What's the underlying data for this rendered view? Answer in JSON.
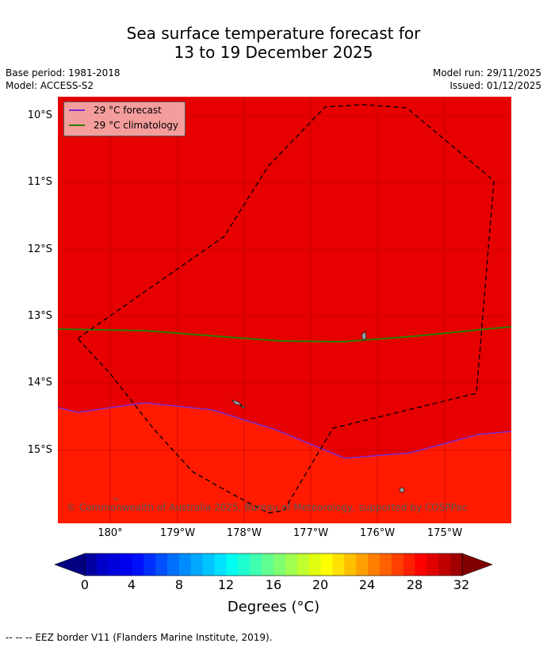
{
  "title": {
    "line1": "Sea surface temperature forecast for",
    "line2": "13 to 19 December 2025"
  },
  "meta": {
    "base_period": "Base period: 1981-2018",
    "model": "Model: ACCESS-S2",
    "model_run": "Model run: 29/11/2025",
    "issued": "Issued: 01/12/2025"
  },
  "map": {
    "lat_labels": [
      "10°S",
      "11°S",
      "12°S",
      "13°S",
      "14°S",
      "15°S"
    ],
    "lon_labels": [
      "180°",
      "179°W",
      "178°W",
      "177°W",
      "176°W",
      "175°W"
    ],
    "legend": [
      {
        "label": "29 °C  forecast",
        "color": "#7b2ccf"
      },
      {
        "label": "29 °C  climatology",
        "color": "#2e7d00"
      }
    ],
    "credit": "© Commonwealth of Australia 2025, Bureau of Meteorology, supported by COSPPac",
    "colors": {
      "warm_region": "#e60000",
      "cool_region": "#ff1a00",
      "grid": "#b40000",
      "eez": "#000000"
    }
  },
  "colorbar": {
    "tick_labels": [
      "0",
      "4",
      "8",
      "12",
      "16",
      "20",
      "24",
      "28",
      "32"
    ],
    "min": 0,
    "max": 32,
    "step": 1,
    "colors": [
      "#0000a0",
      "#0000c8",
      "#0000dc",
      "#0000f0",
      "#0010ff",
      "#0030ff",
      "#0050ff",
      "#0070ff",
      "#008cff",
      "#00a8ff",
      "#00c4ff",
      "#00e0ff",
      "#00fff0",
      "#20ffd0",
      "#40ffb0",
      "#60ff90",
      "#80ff70",
      "#a0ff50",
      "#c0ff30",
      "#e0ff10",
      "#ffff00",
      "#ffe000",
      "#ffc000",
      "#ffa000",
      "#ff8000",
      "#ff6000",
      "#ff4000",
      "#ff2000",
      "#ff0000",
      "#e00000",
      "#c00000",
      "#a00000"
    ],
    "under_color": "#000080",
    "over_color": "#800000",
    "units": "Degrees (°C)"
  },
  "footer": "--  --  -- EEZ border V11 (Flanders Marine Institute, 2019)."
}
